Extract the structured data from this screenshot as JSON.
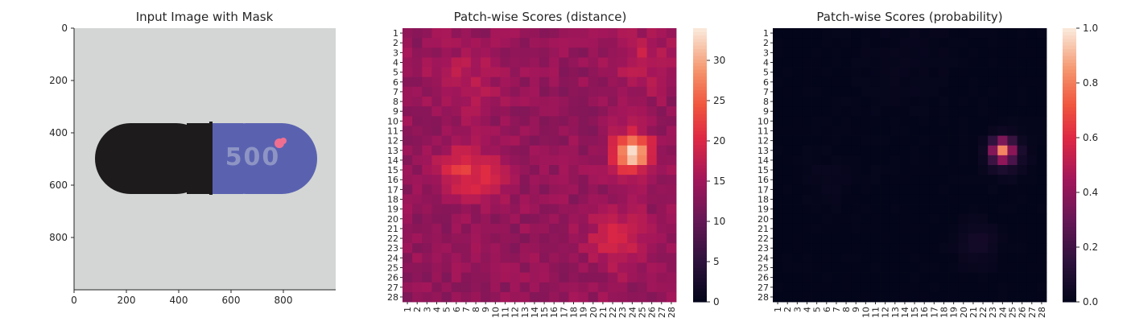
{
  "figure": {
    "background": "#ffffff"
  },
  "chart_data": [
    {
      "type": "image",
      "title": "Input Image with Mask",
      "xlim": [
        0,
        1000
      ],
      "ylim": [
        1000,
        0
      ],
      "xticks": [
        0,
        200,
        400,
        600,
        800
      ],
      "yticks": [
        0,
        200,
        400,
        600,
        800
      ],
      "colors": {
        "background": "#d3d6d4",
        "capsule_black": "#1d1b1c",
        "capsule_blue": "#5a62b0",
        "imprint": "#8e95c4",
        "mask": "#f06f91"
      },
      "imprint_text": "500"
    },
    {
      "type": "heatmap",
      "title": "Patch-wise Scores (distance)",
      "rows": 28,
      "cols": 28,
      "vmin": 0,
      "vmax": 34,
      "colormap": "rocket",
      "colorbar_ticks": [
        0,
        5,
        10,
        15,
        20,
        25,
        30
      ],
      "base": 14,
      "blobs": [
        {
          "r": 13.2,
          "c": 24.0,
          "amp": 20,
          "s": 1.3
        },
        {
          "r": 15.0,
          "c": 6.5,
          "amp": 7,
          "s": 1.6
        },
        {
          "r": 16.0,
          "c": 9.5,
          "amp": 5,
          "s": 1.5
        },
        {
          "r": 22.0,
          "c": 22.5,
          "amp": 6,
          "s": 2.0
        },
        {
          "r": 4.0,
          "c": 25.0,
          "amp": 4,
          "s": 2.0
        },
        {
          "r": 6.0,
          "c": 7.0,
          "amp": 3,
          "s": 2.5
        }
      ]
    },
    {
      "type": "heatmap",
      "title": "Patch-wise Scores (probability)",
      "rows": 28,
      "cols": 28,
      "vmin": 0.0,
      "vmax": 1.0,
      "colormap": "rocket",
      "colorbar_ticks": [
        "0.0",
        "0.2",
        "0.4",
        "0.6",
        "0.8",
        "1.0"
      ],
      "base": 0.0,
      "blobs": [
        {
          "r": 13.0,
          "c": 24.0,
          "amp": 0.7,
          "s": 0.75
        },
        {
          "r": 13.5,
          "c": 24.3,
          "amp": 0.12,
          "s": 1.4
        },
        {
          "r": 22.5,
          "c": 21.5,
          "amp": 0.06,
          "s": 1.5
        },
        {
          "r": 16.0,
          "c": 6.5,
          "amp": 0.02,
          "s": 2.0
        },
        {
          "r": 4.0,
          "c": 14.0,
          "amp": 0.015,
          "s": 4.0
        }
      ]
    }
  ]
}
